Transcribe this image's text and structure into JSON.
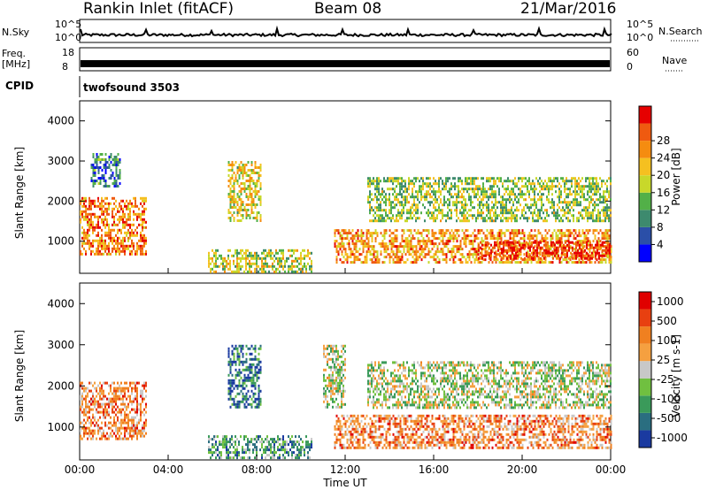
{
  "header": {
    "station": "Rankin Inlet (fitACF)",
    "beam": "Beam 08",
    "date": "21/Mar/2016"
  },
  "top_panels": {
    "nsky_label": "N.Sky",
    "nsky_ticks": [
      "10^5",
      "10^0"
    ],
    "nsearch_label": "N.Search",
    "nsearch_ticks": [
      "10^5",
      "10^0"
    ],
    "freq_label_line1": "Freq.",
    "freq_label_line2": "[MHz]",
    "freq_ticks": [
      "18",
      "8"
    ],
    "nave_label": "Nave",
    "nave_ticks": [
      "60",
      "0"
    ],
    "cpid_label": "CPID",
    "cpid_value": "twofsound 3503"
  },
  "colors": {
    "power_scale": [
      "#0000ff",
      "#2b4fa8",
      "#3d8a6e",
      "#52b048",
      "#c8d82a",
      "#f5c020",
      "#f58c10",
      "#ef5a10",
      "#e60000"
    ],
    "velocity_scale": [
      "#1a3aa0",
      "#2a6e80",
      "#3a9a5a",
      "#70c040",
      "#c8c8c8",
      "#f5a040",
      "#f08020",
      "#e84010",
      "#e00000"
    ]
  },
  "chart_data": [
    {
      "type": "heatmap",
      "name": "Power",
      "ylabel": "Slant Range [km]",
      "yticks": [
        "1000",
        "2000",
        "3000",
        "4000"
      ],
      "ylim": [
        200,
        4500
      ],
      "xticks": [
        "00:00",
        "04:00",
        "08:00",
        "12:00",
        "16:00",
        "20:00",
        "00:00"
      ],
      "colorbar_label": "Power [dB]",
      "colorbar_ticks": [
        "4",
        "8",
        "12",
        "16",
        "20",
        "24",
        "28"
      ],
      "regions": [
        {
          "t0": 0.0,
          "t1": 3.0,
          "r0": 700,
          "r1": 2100,
          "level": 0.75
        },
        {
          "t0": 0.5,
          "t1": 1.8,
          "r0": 2400,
          "r1": 3200,
          "level": 0.25
        },
        {
          "t0": 6.7,
          "t1": 8.2,
          "r0": 1500,
          "r1": 3000,
          "level": 0.55
        },
        {
          "t0": 5.8,
          "t1": 10.5,
          "r0": 250,
          "r1": 800,
          "level": 0.5
        },
        {
          "t0": 11.5,
          "t1": 24.0,
          "r0": 500,
          "r1": 1300,
          "level": 0.7
        },
        {
          "t0": 13.0,
          "t1": 24.0,
          "r0": 1500,
          "r1": 2600,
          "level": 0.45
        },
        {
          "t0": 18.0,
          "t1": 24.0,
          "r0": 600,
          "r1": 1000,
          "level": 0.9
        }
      ]
    },
    {
      "type": "heatmap",
      "name": "Velocity",
      "ylabel": "Slant Range [km]",
      "yticks": [
        "1000",
        "2000",
        "3000",
        "4000"
      ],
      "ylim": [
        200,
        4500
      ],
      "xticks": [
        "00:00",
        "04:00",
        "08:00",
        "12:00",
        "16:00",
        "20:00",
        "00:00"
      ],
      "xlabel": "Time UT",
      "colorbar_label": "Velocity [m s-1]",
      "colorbar_ticks": [
        "1000",
        "500",
        "100",
        "25",
        "-25",
        "-100",
        "-500",
        "-1000"
      ],
      "regions": [
        {
          "t0": 0.0,
          "t1": 3.0,
          "r0": 700,
          "r1": 2100,
          "level": 0.7
        },
        {
          "t0": 6.7,
          "t1": 8.2,
          "r0": 1500,
          "r1": 3000,
          "level": 0.15
        },
        {
          "t0": 5.8,
          "t1": 10.5,
          "r0": 250,
          "r1": 800,
          "level": 0.3
        },
        {
          "t0": 11.0,
          "t1": 12.0,
          "r0": 1500,
          "r1": 3000,
          "level": 0.45
        },
        {
          "t0": 11.5,
          "t1": 24.0,
          "r0": 500,
          "r1": 1300,
          "level": 0.7
        },
        {
          "t0": 13.0,
          "t1": 24.0,
          "r0": 1500,
          "r1": 2600,
          "level": 0.45
        }
      ]
    }
  ]
}
